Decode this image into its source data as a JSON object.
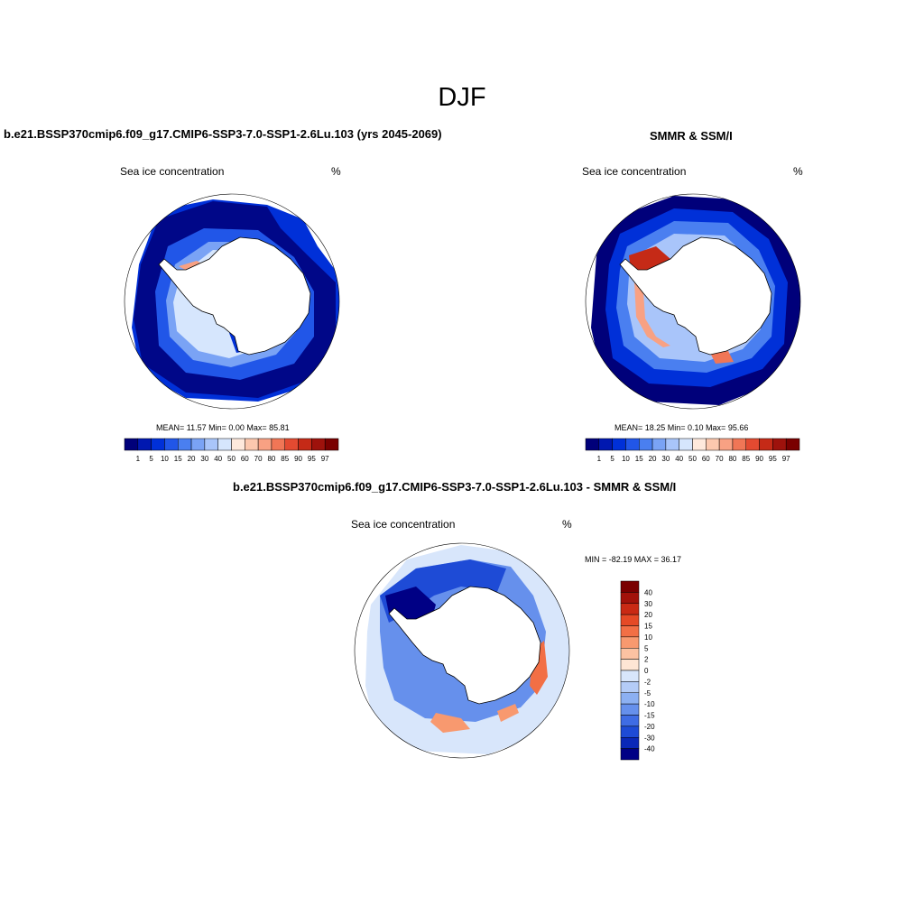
{
  "title": "DJF",
  "panels": [
    {
      "title": "b.e21.BSSP370cmip6.f09_g17.CMIP6-SSP3-7.0-SSP1-2.6Lu.103 (yrs 2045-2069)",
      "variable": "Sea ice concentration",
      "units": "%",
      "stats": "MEAN=  11.57  Min=   0.00  Max=  85.81"
    },
    {
      "title": "SMMR & SSM/I",
      "variable": "Sea ice concentration",
      "units": "%",
      "stats": "MEAN=  18.25  Min=   0.10  Max=  95.66"
    },
    {
      "title": "b.e21.BSSP370cmip6.f09_g17.CMIP6-SSP3-7.0-SSP1-2.6Lu.103 - SMMR & SSM/I",
      "variable": "Sea ice concentration",
      "units": "%",
      "stats": "MIN = -82.19 MAX =  36.17"
    }
  ],
  "colorbar_conc": {
    "labels": [
      "1",
      "5",
      "10",
      "15",
      "20",
      "30",
      "40",
      "50",
      "60",
      "70",
      "80",
      "85",
      "90",
      "95",
      "97"
    ],
    "colors": [
      "#00007a",
      "#0018b0",
      "#0030d8",
      "#2156e8",
      "#4a7ff0",
      "#7aa3f5",
      "#a9c5fa",
      "#d6e6fd",
      "#fee9dc",
      "#fcc8ae",
      "#f8a183",
      "#f07656",
      "#e34a31",
      "#c52a17",
      "#9e120c",
      "#7a0000"
    ]
  },
  "colorbar_diff": {
    "labels": [
      "40",
      "30",
      "20",
      "15",
      "10",
      "5",
      "2",
      "0",
      "-2",
      "-5",
      "-10",
      "-15",
      "-20",
      "-30",
      "-40"
    ],
    "colors": [
      "#7a0000",
      "#a2120a",
      "#c92a14",
      "#e54a26",
      "#f26f45",
      "#f8996f",
      "#fcc2a2",
      "#fee6d4",
      "#d8e6fb",
      "#b4ccf7",
      "#8cb0f2",
      "#6690ec",
      "#3f6ce4",
      "#1e4bd6",
      "#0a28b8",
      "#000085"
    ]
  }
}
